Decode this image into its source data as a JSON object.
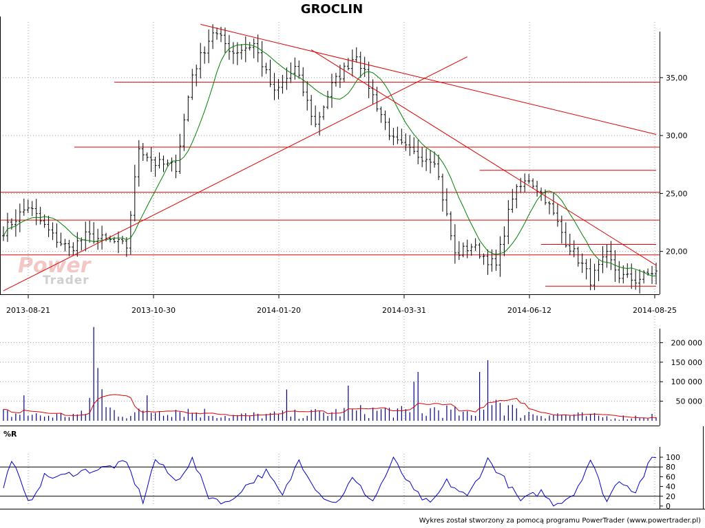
{
  "title": "GROCLIN",
  "footer": "Wykres został stworzony za pomocą programu PowerTrader (www.powertrader.pl)",
  "watermark": {
    "line1": "Power",
    "line2": "Trader"
  },
  "colors": {
    "price_bar": "#000000",
    "ma_line": "#008000",
    "trend_line": "#e00000",
    "volume_bar": "#000080",
    "volume_ma": "#e00000",
    "oscillator": "#0000cc",
    "grid": "#9a9a9a"
  },
  "chart_data": [
    {
      "type": "ohlc",
      "title": "GROCLIN",
      "x_labels": [
        "2013-08-21",
        "2013-10-30",
        "2014-01-20",
        "2014-03-31",
        "2014-06-12",
        "2014-08-25"
      ],
      "y_ticks": [
        "20,00",
        "25,00",
        "30,00",
        "35,00"
      ],
      "ylim": [
        16.3,
        39.8
      ],
      "grid": true,
      "close_path": [
        [
          0,
          21.8
        ],
        [
          6,
          23.9
        ],
        [
          12,
          21.3
        ],
        [
          16,
          20.2
        ],
        [
          20,
          21.3
        ],
        [
          26,
          20.9
        ],
        [
          30,
          20.4
        ],
        [
          33,
          29.0
        ],
        [
          37,
          27.6
        ],
        [
          42,
          27.3
        ],
        [
          46,
          35.3
        ],
        [
          51,
          39.0
        ],
        [
          56,
          37.2
        ],
        [
          61,
          37.9
        ],
        [
          66,
          33.6
        ],
        [
          71,
          35.8
        ],
        [
          76,
          30.9
        ],
        [
          80,
          34.3
        ],
        [
          86,
          37.1
        ],
        [
          90,
          33.4
        ],
        [
          95,
          29.5
        ],
        [
          100,
          28.4
        ],
        [
          105,
          28.0
        ],
        [
          110,
          19.7
        ],
        [
          114,
          20.5
        ],
        [
          120,
          18.7
        ],
        [
          124,
          24.8
        ],
        [
          128,
          26.3
        ],
        [
          132,
          24.6
        ],
        [
          137,
          20.9
        ],
        [
          141,
          18.8
        ],
        [
          143,
          17.5
        ],
        [
          147,
          19.6
        ],
        [
          150,
          17.9
        ],
        [
          154,
          17.5
        ],
        [
          158,
          18.2
        ]
      ],
      "ma_period": 10,
      "horizontal_levels": [
        34.6,
        29.0,
        25.1,
        22.7,
        19.7
      ],
      "trend_lines": [
        {
          "from": [
            48,
            39.6
          ],
          "to": [
            159,
            30.1
          ]
        },
        {
          "from": [
            75,
            37.4
          ],
          "to": [
            159,
            18.8
          ]
        },
        {
          "from": [
            0,
            16.6
          ],
          "to": [
            113,
            36.8
          ]
        },
        {
          "from": [
            116,
            27.0
          ],
          "to": [
            159,
            27.0
          ]
        },
        {
          "from": [
            131,
            20.6
          ],
          "to": [
            159,
            20.6
          ]
        },
        {
          "from": [
            132,
            17.0
          ],
          "to": [
            159,
            17.0
          ]
        }
      ]
    },
    {
      "type": "bar",
      "title": "",
      "y_ticks": [
        "50 000",
        "100 000",
        "150 000",
        "200 000"
      ],
      "ylim": [
        0,
        250000
      ],
      "volume_path": [
        [
          0,
          18000
        ],
        [
          10,
          12000
        ],
        [
          20,
          15000
        ],
        [
          22,
          140000
        ],
        [
          25,
          30000
        ],
        [
          30,
          14000
        ],
        [
          40,
          30000
        ],
        [
          55,
          12000
        ],
        [
          70,
          15000
        ],
        [
          85,
          22000
        ],
        [
          95,
          25000
        ],
        [
          101,
          12000
        ],
        [
          105,
          30000
        ],
        [
          115,
          10000
        ],
        [
          118,
          70000
        ],
        [
          125,
          20000
        ],
        [
          135,
          15000
        ],
        [
          150,
          8000
        ],
        [
          158,
          12000
        ]
      ],
      "spikes": [
        [
          22,
          240000
        ],
        [
          23,
          135000
        ],
        [
          116,
          125000
        ],
        [
          118,
          155000
        ],
        [
          101,
          125000
        ],
        [
          84,
          90000
        ],
        [
          100,
          100000
        ],
        [
          69,
          80000
        ],
        [
          35,
          65000
        ],
        [
          5,
          65000
        ]
      ],
      "ma_period": 10
    },
    {
      "type": "line",
      "title": "%R",
      "y_ticks": [
        "0",
        "20",
        "40",
        "60",
        "80",
        "100"
      ],
      "ylim": [
        0,
        100
      ],
      "levels": [
        20,
        80
      ],
      "wr_path": [
        [
          0,
          35
        ],
        [
          2,
          98
        ],
        [
          6,
          5
        ],
        [
          10,
          60
        ],
        [
          14,
          60
        ],
        [
          18,
          70
        ],
        [
          23,
          75
        ],
        [
          30,
          88
        ],
        [
          34,
          10
        ],
        [
          37,
          96
        ],
        [
          42,
          50
        ],
        [
          46,
          95
        ],
        [
          50,
          20
        ],
        [
          55,
          5
        ],
        [
          58,
          35
        ],
        [
          64,
          70
        ],
        [
          68,
          20
        ],
        [
          72,
          95
        ],
        [
          77,
          25
        ],
        [
          81,
          5
        ],
        [
          85,
          55
        ],
        [
          90,
          10
        ],
        [
          95,
          95
        ],
        [
          100,
          30
        ],
        [
          104,
          2
        ],
        [
          108,
          50
        ],
        [
          113,
          18
        ],
        [
          118,
          95
        ],
        [
          122,
          55
        ],
        [
          126,
          10
        ],
        [
          131,
          30
        ],
        [
          134,
          2
        ],
        [
          139,
          25
        ],
        [
          143,
          95
        ],
        [
          147,
          10
        ],
        [
          150,
          55
        ],
        [
          154,
          30
        ],
        [
          158,
          98
        ]
      ]
    }
  ]
}
